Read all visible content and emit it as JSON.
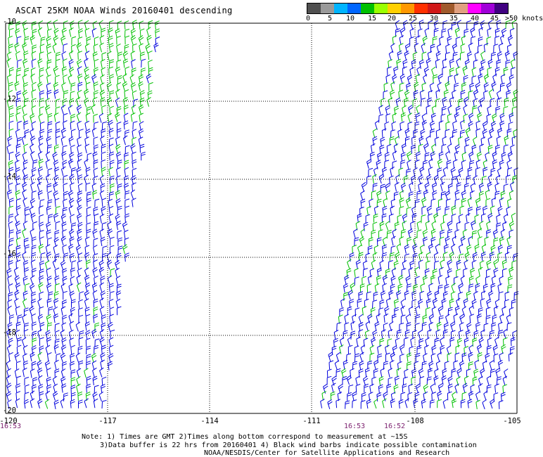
{
  "title": "ASCAT 25KM NOAA Winds 20160401  descending",
  "legend": {
    "labels": [
      "0",
      "5",
      "10",
      "15",
      "20",
      "25",
      "30",
      "35",
      "40",
      "45",
      ">50 knots"
    ],
    "colors": [
      "#505050",
      "#9a9a9a",
      "#00b4ff",
      "#0066ff",
      "#00c000",
      "#9aff00",
      "#ffd000",
      "#ff9800",
      "#ff3000",
      "#d01818",
      "#a05a2c",
      "#e0a080",
      "#ff00ff",
      "#a000d8",
      "#400080"
    ]
  },
  "axes": {
    "lon_labels": [
      "-120",
      "-117",
      "-114",
      "-111",
      "-108",
      "-105"
    ],
    "lat_labels": [
      "-10",
      "-12",
      "-14",
      "-16",
      "-18",
      "-20"
    ]
  },
  "times": [
    "16:53",
    "16:53",
    "16:52"
  ],
  "notes": {
    "line1": "Note: 1) Times are GMT 2)Times along bottom correspond to measurement at ~15S",
    "line2": "3)Data buffer is 22 hrs from 20160401 4) Black wind barbs indicate possible contamination",
    "line3": "NOAA/NESDIS/Center for Satellite Applications and Research"
  },
  "map_colors": {
    "grid": "#000000",
    "barb_low": "#0000dd",
    "barb_high": "#00c000"
  }
}
